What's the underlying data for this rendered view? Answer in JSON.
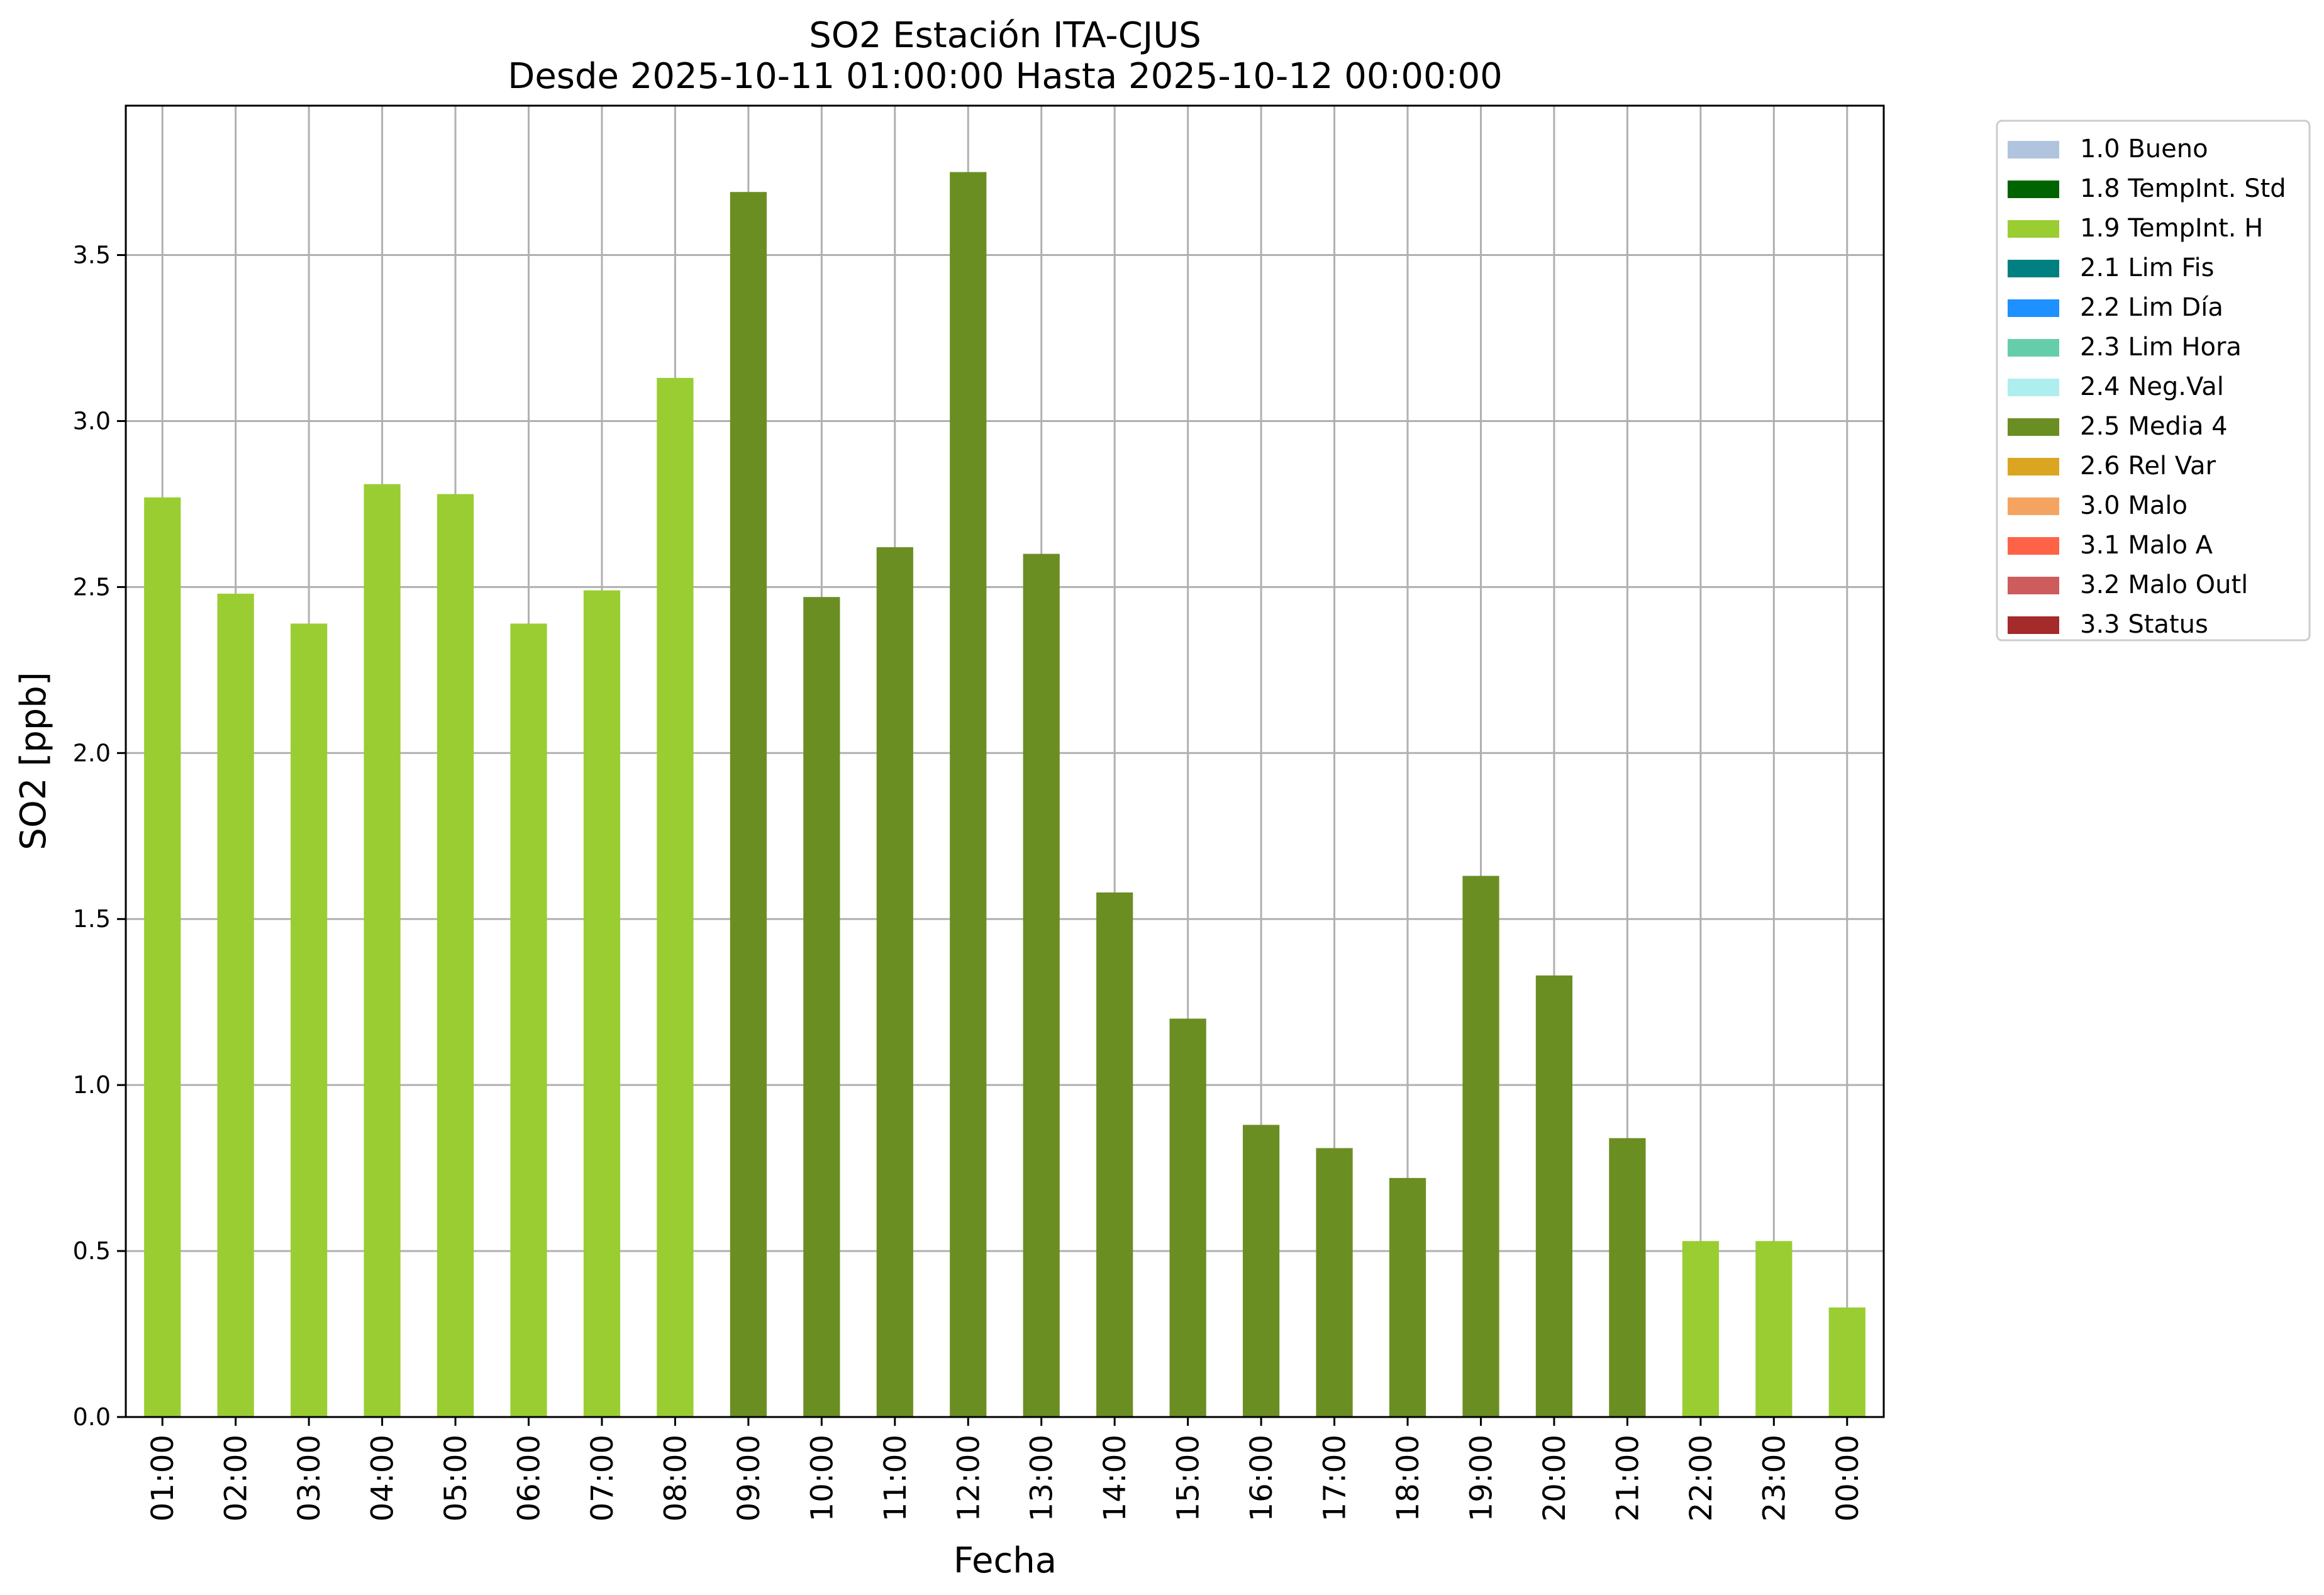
{
  "chart_data": {
    "type": "bar",
    "title": "SO2 Estación ITA-CJUS",
    "subtitle": "Desde 2025-10-11 01:00:00 Hasta 2025-10-12 00:00:00",
    "xlabel": "Fecha",
    "ylabel": "SO2 [ppb]",
    "ylim": [
      0,
      3.95
    ],
    "yticks": [
      "0.0",
      "0.5",
      "1.0",
      "1.5",
      "2.0",
      "2.5",
      "3.0",
      "3.5"
    ],
    "grid": true,
    "legend_position": "outside-right",
    "categories": [
      "01:00",
      "02:00",
      "03:00",
      "04:00",
      "05:00",
      "06:00",
      "07:00",
      "08:00",
      "09:00",
      "10:00",
      "11:00",
      "12:00",
      "13:00",
      "14:00",
      "15:00",
      "16:00",
      "17:00",
      "18:00",
      "19:00",
      "20:00",
      "21:00",
      "22:00",
      "23:00",
      "00:00"
    ],
    "values": [
      2.77,
      2.48,
      2.39,
      2.81,
      2.78,
      2.39,
      2.49,
      3.13,
      3.69,
      2.47,
      2.62,
      3.75,
      2.6,
      1.58,
      1.2,
      0.88,
      0.81,
      0.72,
      1.63,
      1.33,
      0.84,
      0.53,
      0.53,
      0.33
    ],
    "flags": [
      "1.9",
      "1.9",
      "1.9",
      "1.9",
      "1.9",
      "1.9",
      "1.9",
      "1.9",
      "2.5",
      "2.5",
      "2.5",
      "2.5",
      "2.5",
      "2.5",
      "2.5",
      "2.5",
      "2.5",
      "2.5",
      "2.5",
      "2.5",
      "2.5",
      "1.9",
      "1.9",
      "1.9"
    ],
    "legend": [
      {
        "code": "1.0",
        "label": "1.0 Bueno",
        "color": "#b0c4de"
      },
      {
        "code": "1.8",
        "label": "1.8 TempInt. Std",
        "color": "#006400"
      },
      {
        "code": "1.9",
        "label": "1.9 TempInt. H",
        "color": "#9acd32"
      },
      {
        "code": "2.1",
        "label": "2.1 Lim Fis",
        "color": "#008080"
      },
      {
        "code": "2.2",
        "label": "2.2 Lim Día",
        "color": "#1e90ff"
      },
      {
        "code": "2.3",
        "label": "2.3 Lim Hora",
        "color": "#66cdaa"
      },
      {
        "code": "2.4",
        "label": "2.4 Neg.Val",
        "color": "#afeeee"
      },
      {
        "code": "2.5",
        "label": "2.5 Media 4",
        "color": "#6b8e23"
      },
      {
        "code": "2.6",
        "label": "2.6 Rel Var",
        "color": "#daa520"
      },
      {
        "code": "3.0",
        "label": "3.0 Malo",
        "color": "#f4a460"
      },
      {
        "code": "3.1",
        "label": "3.1 Malo A",
        "color": "#ff6347"
      },
      {
        "code": "3.2",
        "label": "3.2 Malo Outl",
        "color": "#cd5c5c"
      },
      {
        "code": "3.3",
        "label": "3.3 Status",
        "color": "#a52a2a"
      }
    ]
  }
}
